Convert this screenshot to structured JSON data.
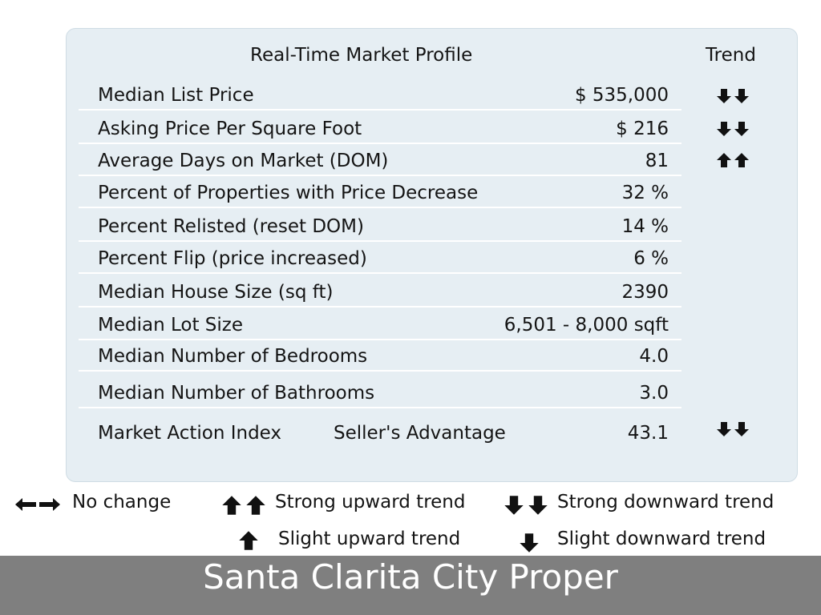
{
  "profile": {
    "title": "Real-Time Market Profile",
    "trend_header": "Trend",
    "rows": [
      {
        "label": "Median List Price",
        "value": "$ 535,000",
        "trend": "strong-down"
      },
      {
        "label": "Asking Price Per Square Foot",
        "value": "$ 216",
        "trend": "strong-down"
      },
      {
        "label": "Average Days on Market (DOM)",
        "value": "81",
        "trend": "strong-up"
      },
      {
        "label": "Percent of Properties with Price Decrease",
        "value": "32 %",
        "trend": ""
      },
      {
        "label": "Percent Relisted (reset DOM)",
        "value": "14 %",
        "trend": ""
      },
      {
        "label": "Percent Flip (price increased)",
        "value": "6 %",
        "trend": ""
      },
      {
        "label": "Median House Size (sq ft)",
        "value": "2390",
        "trend": ""
      },
      {
        "label": "Median Lot Size",
        "value": "6,501 - 8,000 sqft",
        "trend": ""
      },
      {
        "label": "Median Number of Bedrooms",
        "value": "4.0",
        "trend": ""
      },
      {
        "label": "Median Number of Bathrooms",
        "value": "3.0",
        "trend": ""
      },
      {
        "label": "Market Action Index",
        "sublabel": "Seller's Advantage",
        "value": "43.1",
        "trend": "strong-down"
      }
    ]
  },
  "legend": {
    "no_change": "No change",
    "strong_up": "Strong upward trend",
    "strong_down": "Strong downward trend",
    "slight_up": "Slight upward trend",
    "slight_down": "Slight downward trend"
  },
  "footer": {
    "location": "Santa Clarita City Proper"
  }
}
